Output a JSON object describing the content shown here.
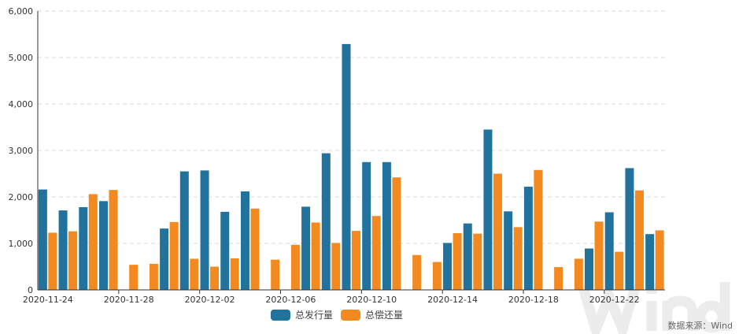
{
  "chart_data": {
    "type": "bar",
    "title": "",
    "xlabel": "",
    "ylabel": "",
    "ylim": [
      0,
      6000
    ],
    "yticks": [
      "0",
      "1,000",
      "2,000",
      "3,000",
      "4,000",
      "5,000",
      "6,000"
    ],
    "grid": true,
    "legend_position": "bottom",
    "x_tick_labels": [
      "2020-11-24",
      "2020-11-28",
      "2020-12-02",
      "2020-12-06",
      "2020-12-10",
      "2020-12-14",
      "2020-12-18",
      "2020-12-22"
    ],
    "categories": [
      "2020-11-24",
      "2020-11-25",
      "2020-11-26",
      "2020-11-27",
      "2020-11-28",
      "2020-11-29",
      "2020-11-30",
      "2020-12-01",
      "2020-12-02",
      "2020-12-03",
      "2020-12-04",
      "2020-12-05",
      "2020-12-06",
      "2020-12-07",
      "2020-12-08",
      "2020-12-09",
      "2020-12-10",
      "2020-12-11",
      "2020-12-12",
      "2020-12-13",
      "2020-12-14",
      "2020-12-15",
      "2020-12-16",
      "2020-12-17",
      "2020-12-18",
      "2020-12-19",
      "2020-12-20",
      "2020-12-21",
      "2020-12-22",
      "2020-12-23",
      "2020-12-24"
    ],
    "series": [
      {
        "name": "总发行量",
        "color": "#21739e",
        "values": [
          2160,
          1710,
          1780,
          1910,
          0,
          0,
          1320,
          2550,
          2570,
          1680,
          2120,
          0,
          0,
          1790,
          2940,
          5290,
          2750,
          2750,
          0,
          0,
          1010,
          1430,
          3450,
          1690,
          2220,
          0,
          0,
          890,
          1670,
          2620,
          1200
        ]
      },
      {
        "name": "总偿还量",
        "color": "#f28a1f",
        "values": [
          1230,
          1260,
          2060,
          2150,
          540,
          560,
          1460,
          670,
          500,
          680,
          1750,
          650,
          970,
          1450,
          1010,
          1270,
          1590,
          2420,
          750,
          600,
          1220,
          1210,
          2500,
          1350,
          2580,
          490,
          670,
          1470,
          820,
          2140,
          1280
        ]
      }
    ]
  },
  "source": "数据来源：Wind",
  "watermark": "Wind"
}
